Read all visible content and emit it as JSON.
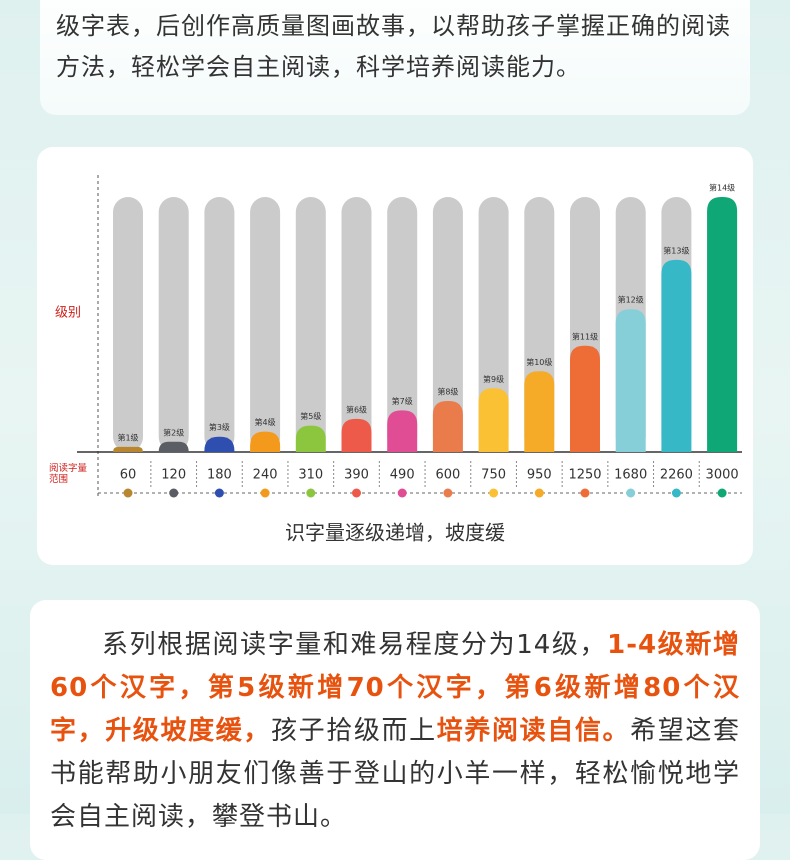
{
  "intro": {
    "text": "级字表，后创作高质量图画故事，以帮助孩子掌握正确的阅读方法，轻松学会自主阅读，科学培养阅读能力。"
  },
  "chart_data": {
    "type": "bar",
    "y_label": "级别",
    "x_label": "阅读字量范围",
    "caption": "识字量逐级递增，坡度缓",
    "categories": [
      "第1级",
      "第2级",
      "第3级",
      "第4级",
      "第5级",
      "第6级",
      "第7级",
      "第8级",
      "第9级",
      "第10级",
      "第11级",
      "第12级",
      "第13级",
      "第14级"
    ],
    "values": [
      60,
      120,
      180,
      240,
      310,
      390,
      490,
      600,
      750,
      950,
      1250,
      1680,
      2260,
      3000
    ],
    "colors": [
      "#b8862e",
      "#5a5d63",
      "#2f4fb0",
      "#f39a1d",
      "#8cc63f",
      "#ee5a4a",
      "#e04d95",
      "#ea7b4b",
      "#fbc134",
      "#f5ab28",
      "#ee6c35",
      "#86cfd8",
      "#36b8c7",
      "#0ea775"
    ],
    "track_color": "#cbcbcb",
    "ylim": [
      0,
      3000
    ]
  },
  "description": {
    "segments": [
      {
        "text": "系列根据阅读字量和难易程度分为14级，",
        "color": "#333333",
        "bold": false
      },
      {
        "text": "1-4级新增60个汉字，第5级新增70个汉字，第6级新增80个汉字，升级坡度缓，",
        "color": "#e8520f",
        "bold": true
      },
      {
        "text": "孩子拾级而上",
        "color": "#333333",
        "bold": false
      },
      {
        "text": "培养阅读自信。",
        "color": "#e8520f",
        "bold": true
      },
      {
        "text": "希望这套书能帮助小朋友们像善于登山的小羊一样，轻松愉悦地学会自主阅读，攀登书山。",
        "color": "#333333",
        "bold": false
      }
    ]
  }
}
